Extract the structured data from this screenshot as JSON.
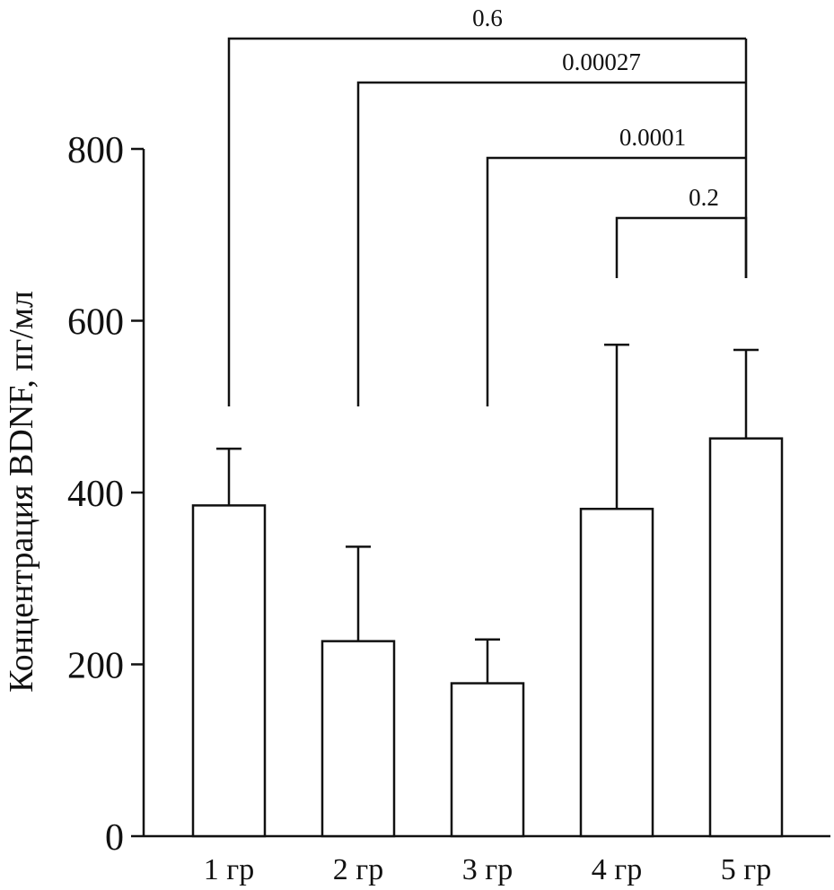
{
  "chart_data": {
    "type": "bar",
    "title": "",
    "xlabel": "",
    "ylabel": "Концентрация BDNF, пг/мл",
    "ylim": [
      0,
      800
    ],
    "yticks": [
      0,
      200,
      400,
      600,
      800
    ],
    "categories": [
      "1 гр",
      "2 гр",
      "3 гр",
      "4 гр",
      "5 гр"
    ],
    "values": [
      385,
      227,
      178,
      381,
      463
    ],
    "error_upper": [
      451,
      337,
      229,
      572,
      566
    ],
    "grid": false,
    "legend": "none",
    "significance": [
      {
        "from": "1 гр",
        "to": "5 гр",
        "label": "0.6"
      },
      {
        "from": "2 гр",
        "to": "5 гр",
        "label": "0.00027"
      },
      {
        "from": "3 гр",
        "to": "5 гр",
        "label": "0.0001"
      },
      {
        "from": "4 гр",
        "to": "5 гр",
        "label": "0.2"
      }
    ],
    "colors": {
      "bar_fill": "#ffffff",
      "stroke": "#111111"
    }
  }
}
